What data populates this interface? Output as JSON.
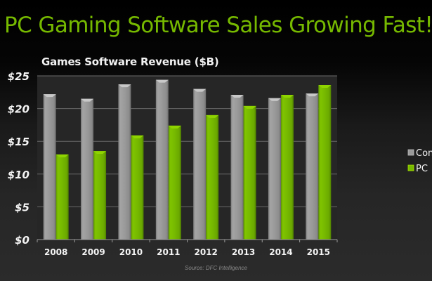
{
  "slide": {
    "title": "PC Gaming Software Sales Growing Fast!",
    "source": "Source: DFC Intelligence"
  },
  "chart_data": {
    "type": "bar",
    "title": "Games Software Revenue ($B)",
    "xlabel": "",
    "ylabel": "",
    "ylim": [
      0,
      25
    ],
    "yticks": [
      0,
      5,
      10,
      15,
      20,
      25
    ],
    "ytick_labels": [
      "$0",
      "$5",
      "$10",
      "$15",
      "$20",
      "$25"
    ],
    "grid": true,
    "legend_position": "right",
    "categories": [
      "2008",
      "2009",
      "2010",
      "2011",
      "2012",
      "2013",
      "2014",
      "2015"
    ],
    "series": [
      {
        "name": "Con",
        "color": "#9a9a9a",
        "values": [
          22.2,
          21.5,
          23.7,
          24.4,
          23.0,
          22.1,
          21.6,
          22.3
        ]
      },
      {
        "name": "PC",
        "color": "#76b900",
        "values": [
          13.0,
          13.5,
          15.9,
          17.4,
          19.0,
          20.4,
          22.1,
          23.6
        ]
      }
    ]
  }
}
